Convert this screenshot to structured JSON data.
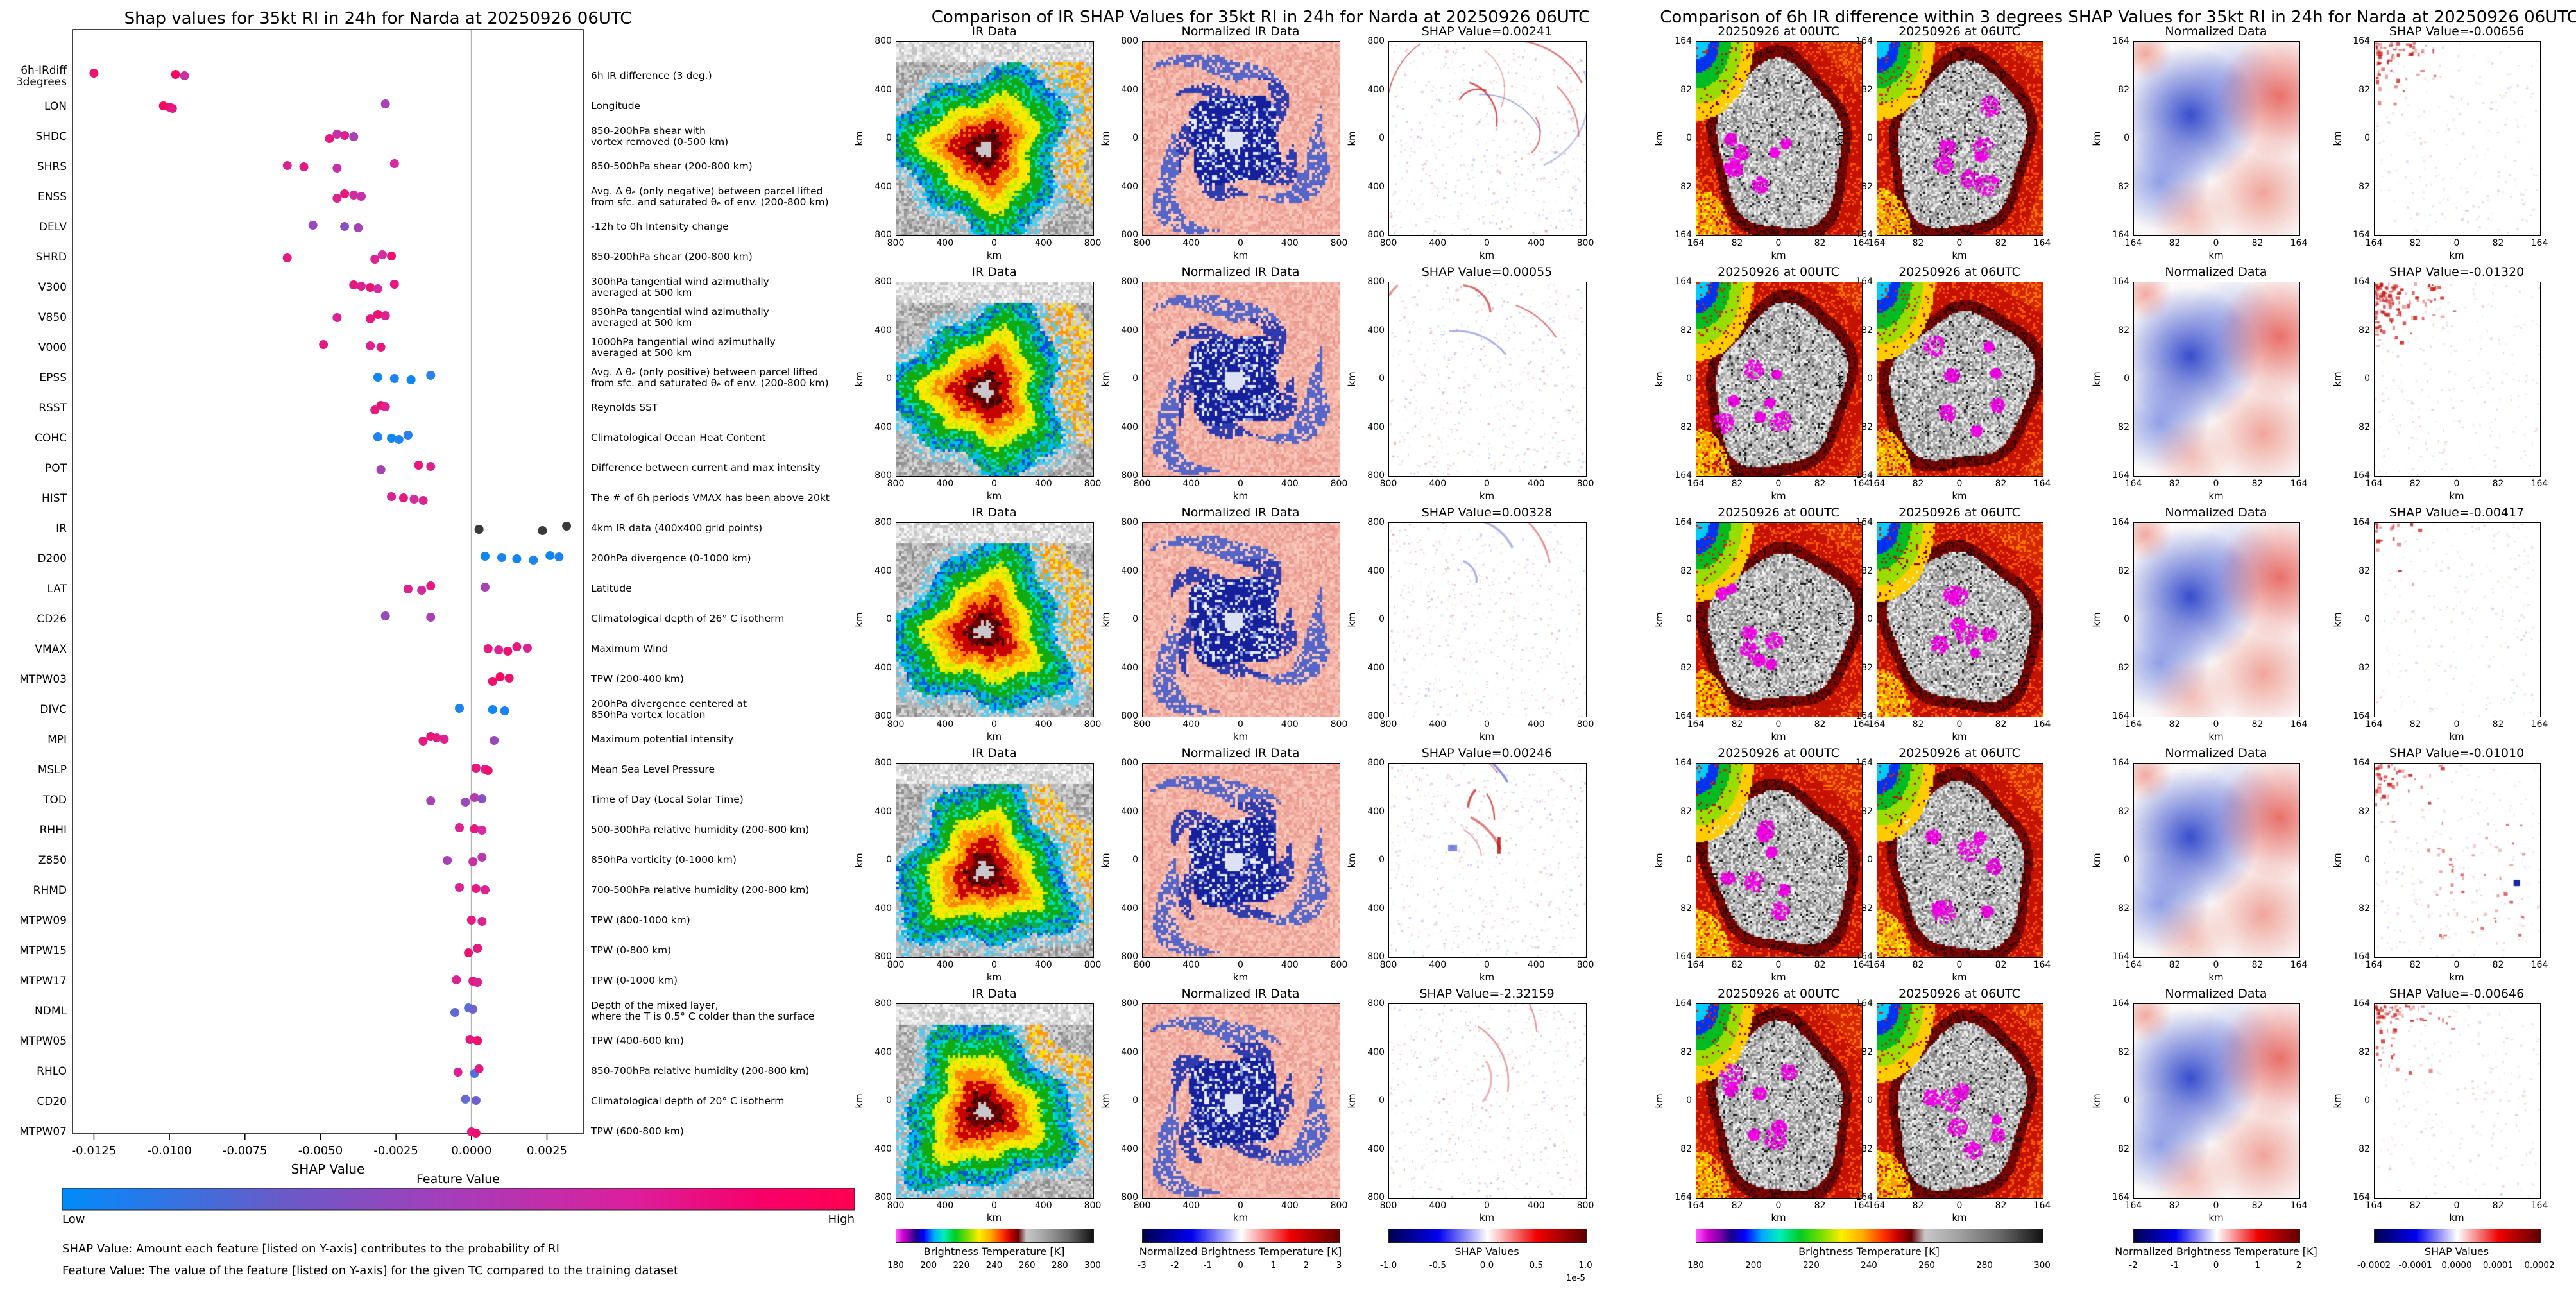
{
  "chart_data": [
    {
      "type": "scatter",
      "subtype": "shap-beeswarm",
      "title": "Shap values for 35kt RI in 24h for Narda at 20250926 06UTC",
      "xlabel": "SHAP Value",
      "xlim": [
        -0.01321,
        0.0037
      ],
      "xticks": [
        -0.0125,
        -0.01,
        -0.0075,
        -0.005,
        -0.0025,
        0,
        0.0025
      ],
      "xtick_labels": [
        "-0.0125",
        "-0.0100",
        "-0.0075",
        "-0.0050",
        "-0.0025",
        "0.0000",
        "0.0025"
      ],
      "grid": false,
      "colorbar": {
        "title": "Feature Value",
        "low": "Low",
        "high": "High",
        "low_color": "#008bfb",
        "high_color": "#ff0051"
      },
      "footnotes": [
        "SHAP Value: Amount each feature [listed on Y-axis] contributes to the probability of RI",
        "Feature Value: The value of the feature [listed on Y-axis] for the given TC compared to the training dataset"
      ],
      "features": [
        {
          "name": "6h-IRdiff\n3degrees",
          "desc": "6h IR difference (3 deg.)",
          "dots": [
            [
              -0.0125,
              0.9
            ],
            [
              -0.0098,
              0.95
            ],
            [
              -0.0095,
              0.7
            ]
          ]
        },
        {
          "name": "LON",
          "desc": "Longitude",
          "dots": [
            [
              -0.0102,
              0.95
            ],
            [
              -0.01,
              0.9
            ],
            [
              -0.0099,
              0.85
            ],
            [
              -0.00285,
              0.6
            ]
          ]
        },
        {
          "name": "SHDC",
          "desc": "850-200hPa shear with\nvortex removed (0-500 km)",
          "dots": [
            [
              -0.0047,
              0.85
            ],
            [
              -0.00445,
              0.7
            ],
            [
              -0.0042,
              0.8
            ],
            [
              -0.0039,
              0.6
            ]
          ]
        },
        {
          "name": "SHRS",
          "desc": "850-500hPa shear (200-800 km)",
          "dots": [
            [
              -0.0061,
              0.8
            ],
            [
              -0.00555,
              0.85
            ],
            [
              -0.00445,
              0.7
            ],
            [
              -0.00255,
              0.75
            ]
          ]
        },
        {
          "name": "ENSS",
          "desc": "Avg. Δ θₑ (only negative) between parcel lifted\nfrom sfc. and saturated θₑ of env. (200-800 km)",
          "dots": [
            [
              -0.00445,
              0.8
            ],
            [
              -0.0042,
              0.85
            ],
            [
              -0.0039,
              0.75
            ],
            [
              -0.00365,
              0.7
            ]
          ]
        },
        {
          "name": "DELV",
          "desc": "-12h to 0h Intensity change",
          "dots": [
            [
              -0.00525,
              0.55
            ],
            [
              -0.0042,
              0.5
            ],
            [
              -0.00375,
              0.6
            ]
          ]
        },
        {
          "name": "SHRD",
          "desc": "850-200hPa shear (200-800 km)",
          "dots": [
            [
              -0.0061,
              0.85
            ],
            [
              -0.0032,
              0.8
            ],
            [
              -0.00295,
              0.75
            ],
            [
              -0.00265,
              0.9
            ]
          ]
        },
        {
          "name": "V300",
          "desc": "300hPa tangential wind azimuthally\naveraged at 500 km",
          "dots": [
            [
              -0.0039,
              0.85
            ],
            [
              -0.00365,
              0.8
            ],
            [
              -0.00335,
              0.9
            ],
            [
              -0.0031,
              0.75
            ],
            [
              -0.00255,
              0.85
            ]
          ]
        },
        {
          "name": "V850",
          "desc": "850hPa tangential wind azimuthally\naveraged at 500 km",
          "dots": [
            [
              -0.00445,
              0.8
            ],
            [
              -0.00335,
              0.85
            ],
            [
              -0.0031,
              0.9
            ],
            [
              -0.00285,
              0.8
            ]
          ]
        },
        {
          "name": "V000",
          "desc": "1000hPa tangential wind azimuthally\naveraged at 500 km",
          "dots": [
            [
              -0.0049,
              0.85
            ],
            [
              -0.00335,
              0.8
            ],
            [
              -0.003,
              0.85
            ]
          ]
        },
        {
          "name": "EPSS",
          "desc": "Avg. Δ θₑ (only positive) between parcel lifted\nfrom sfc. and saturated θₑ of env. (200-800 km)",
          "dots": [
            [
              -0.0031,
              0.05
            ],
            [
              -0.00255,
              0.1
            ],
            [
              -0.002,
              0.05
            ],
            [
              -0.00135,
              0.15
            ]
          ]
        },
        {
          "name": "RSST",
          "desc": "Reynolds SST",
          "dots": [
            [
              -0.0032,
              0.85
            ],
            [
              -0.003,
              0.9
            ],
            [
              -0.00285,
              0.8
            ]
          ]
        },
        {
          "name": "COHC",
          "desc": "Climatological Ocean Heat Content",
          "dots": [
            [
              -0.0031,
              0.1
            ],
            [
              -0.00265,
              0.05
            ],
            [
              -0.0024,
              0.1
            ],
            [
              -0.0021,
              0.15
            ]
          ]
        },
        {
          "name": "POT",
          "desc": "Difference between current and max intensity",
          "dots": [
            [
              -0.003,
              0.6
            ],
            [
              -0.00175,
              0.85
            ],
            [
              -0.00135,
              0.8
            ]
          ]
        },
        {
          "name": "HIST",
          "desc": "The # of 6h periods VMAX has been above 20kt",
          "dots": [
            [
              -0.00265,
              0.8
            ],
            [
              -0.00225,
              0.85
            ],
            [
              -0.0019,
              0.75
            ],
            [
              -0.0016,
              0.8
            ]
          ]
        },
        {
          "name": "IR",
          "desc": "4km IR data (400x400 grid points)",
          "dots": [
            [
              0.00025,
              -1
            ],
            [
              0.00235,
              -1
            ],
            [
              0.00315,
              -1
            ]
          ]
        },
        {
          "name": "D200",
          "desc": "200hPa divergence (0-1000 km)",
          "dots": [
            [
              0.00045,
              0.05
            ],
            [
              0.001,
              0.1
            ],
            [
              0.0015,
              0.05
            ],
            [
              0.00205,
              0.1
            ],
            [
              0.0026,
              0.05
            ],
            [
              0.0029,
              0.1
            ]
          ]
        },
        {
          "name": "LAT",
          "desc": "Latitude",
          "dots": [
            [
              -0.0021,
              0.8
            ],
            [
              -0.00165,
              0.75
            ],
            [
              -0.00135,
              0.85
            ],
            [
              0.00045,
              0.6
            ]
          ]
        },
        {
          "name": "CD26",
          "desc": "Climatological depth of 26° C isotherm",
          "dots": [
            [
              -0.00285,
              0.55
            ],
            [
              -0.00135,
              0.6
            ]
          ]
        },
        {
          "name": "VMAX",
          "desc": "Maximum Wind",
          "dots": [
            [
              0.00055,
              0.85
            ],
            [
              0.0009,
              0.8
            ],
            [
              0.0012,
              0.9
            ],
            [
              0.0015,
              0.85
            ],
            [
              0.00185,
              0.8
            ]
          ]
        },
        {
          "name": "MTPW03",
          "desc": "TPW (200-400 km)",
          "dots": [
            [
              0.0007,
              0.9
            ],
            [
              0.00095,
              0.95
            ],
            [
              0.00125,
              0.9
            ]
          ]
        },
        {
          "name": "DIVC",
          "desc": "200hPa divergence centered at\n850hPa vortex location",
          "dots": [
            [
              -0.0004,
              0.1
            ],
            [
              0.0007,
              0.05
            ],
            [
              0.0011,
              0.1
            ]
          ]
        },
        {
          "name": "MPI",
          "desc": "Maximum potential intensity",
          "dots": [
            [
              -0.0016,
              0.85
            ],
            [
              -0.00135,
              0.9
            ],
            [
              -0.00115,
              0.85
            ],
            [
              -0.0009,
              0.8
            ],
            [
              0.00075,
              0.55
            ]
          ]
        },
        {
          "name": "MSLP",
          "desc": "Mean Sea Level Pressure",
          "dots": [
            [
              0.00015,
              0.85
            ],
            [
              0.00045,
              0.8
            ],
            [
              0.00055,
              0.9
            ]
          ]
        },
        {
          "name": "TOD",
          "desc": "Time of Day (Local Solar Time)",
          "dots": [
            [
              -0.00135,
              0.6
            ],
            [
              -0.0002,
              0.55
            ],
            [
              0.0001,
              0.65
            ],
            [
              0.00035,
              0.5
            ]
          ]
        },
        {
          "name": "RHHI",
          "desc": "500-300hPa relative humidity (200-800 km)",
          "dots": [
            [
              -0.0004,
              0.8
            ],
            [
              0.0001,
              0.85
            ],
            [
              0.00035,
              0.75
            ]
          ]
        },
        {
          "name": "Z850",
          "desc": "850hPa vorticity (0-1000 km)",
          "dots": [
            [
              -0.0008,
              0.6
            ],
            [
              5e-05,
              0.7
            ],
            [
              0.00035,
              0.65
            ]
          ]
        },
        {
          "name": "RHMD",
          "desc": "700-500hPa relative humidity (200-800 km)",
          "dots": [
            [
              -0.0004,
              0.8
            ],
            [
              0.00015,
              0.85
            ],
            [
              0.00045,
              0.8
            ]
          ]
        },
        {
          "name": "MTPW09",
          "desc": "TPW (800-1000 km)",
          "dots": [
            [
              0,
              0.85
            ],
            [
              0.00035,
              0.8
            ]
          ]
        },
        {
          "name": "MTPW15",
          "desc": "TPW (0-800 km)",
          "dots": [
            [
              -0.0001,
              0.9
            ],
            [
              0.0002,
              0.85
            ]
          ]
        },
        {
          "name": "MTPW17",
          "desc": "TPW (0-1000 km)",
          "dots": [
            [
              -0.0005,
              0.8
            ],
            [
              5e-05,
              0.85
            ],
            [
              0.0002,
              0.8
            ]
          ]
        },
        {
          "name": "NDML",
          "desc": "Depth of the mixed layer,\nwhere the T is 0.5° C colder than the surface",
          "dots": [
            [
              -0.00055,
              0.35
            ],
            [
              -0.0001,
              0.3
            ],
            [
              5e-05,
              0.4
            ]
          ]
        },
        {
          "name": "MTPW05",
          "desc": "TPW (400-600 km)",
          "dots": [
            [
              -5e-05,
              0.85
            ],
            [
              0.0002,
              0.9
            ]
          ]
        },
        {
          "name": "RHLO",
          "desc": "850-700hPa relative humidity (200-800 km)",
          "dots": [
            [
              -0.00045,
              0.8
            ],
            [
              0.0001,
              0.3
            ],
            [
              0.00025,
              0.85
            ]
          ]
        },
        {
          "name": "CD20",
          "desc": "Climatological depth of 20° C isotherm",
          "dots": [
            [
              -0.0002,
              0.35
            ],
            [
              0.00015,
              0.4
            ]
          ]
        },
        {
          "name": "MTPW07",
          "desc": "TPW (600-800 km)",
          "dots": [
            [
              0,
              0.85
            ],
            [
              0.00015,
              0.9
            ]
          ]
        }
      ]
    },
    {
      "type": "heatmap",
      "subtype": "ir-image-grid",
      "title": "Comparison of IR SHAP Values for 35kt RI in 24h for Narda at 20250926 06UTC",
      "columns": [
        "IR Data",
        "Normalized IR Data"
      ],
      "row_shap_values": [
        0.00241,
        0.00055,
        0.00328,
        0.00246,
        -2.32159
      ],
      "row_shap_labels": [
        "SHAP Value=0.00241",
        "SHAP Value=0.00055",
        "SHAP Value=0.00328",
        "SHAP Value=0.00246",
        "SHAP Value=-2.32159"
      ],
      "axis_ticks": [
        "800",
        "400",
        "0",
        "400",
        "800"
      ],
      "axis_label": "km",
      "colorbars": [
        {
          "label": "Brightness Temperature [K]",
          "ticks": [
            "180",
            "200",
            "220",
            "240",
            "260",
            "280",
            "300"
          ],
          "palette": "ir"
        },
        {
          "label": "Normalized Brightness Temperature [K]",
          "ticks": [
            "-3",
            "-2",
            "-1",
            "0",
            "1",
            "2",
            "3"
          ],
          "palette": "seismic"
        },
        {
          "label": "SHAP Values",
          "ticks": [
            "-1.0",
            "-0.5",
            "0.0",
            "0.5",
            "1.0"
          ],
          "palette": "seismic",
          "offset": "1e-5"
        }
      ]
    },
    {
      "type": "heatmap",
      "subtype": "ir-diff-image-grid",
      "title": "Comparison of 6h IR difference within 3 degrees SHAP Values for 35kt RI in 24h for Narda at 20250926 06UTC",
      "columns": [
        "20250926 at 00UTC",
        "20250926 at 06UTC",
        "Normalized Data"
      ],
      "row_shap_values": [
        -0.00656,
        -0.0132,
        -0.00417,
        -0.0101,
        -0.00646
      ],
      "row_shap_labels": [
        "SHAP Value=-0.00656",
        "SHAP Value=-0.01320",
        "SHAP Value=-0.00417",
        "SHAP Value=-0.01010",
        "SHAP Value=-0.00646"
      ],
      "axis_ticks": [
        "164",
        "82",
        "0",
        "82",
        "164"
      ],
      "axis_label": "km",
      "colorbars": [
        {
          "label": "Brightness Temperature [K]",
          "ticks": [
            "180",
            "200",
            "220",
            "240",
            "260",
            "280",
            "300"
          ],
          "palette": "ir",
          "span": 2
        },
        {
          "label": "Normalized Brightness Temperature [K]",
          "ticks": [
            "-2",
            "-1",
            "0",
            "1",
            "2"
          ],
          "palette": "seismic"
        },
        {
          "label": "SHAP Values",
          "ticks": [
            "-0.0002",
            "-0.0001",
            "0.0000",
            "0.0001",
            "0.0002"
          ],
          "palette": "seismic"
        }
      ]
    }
  ]
}
